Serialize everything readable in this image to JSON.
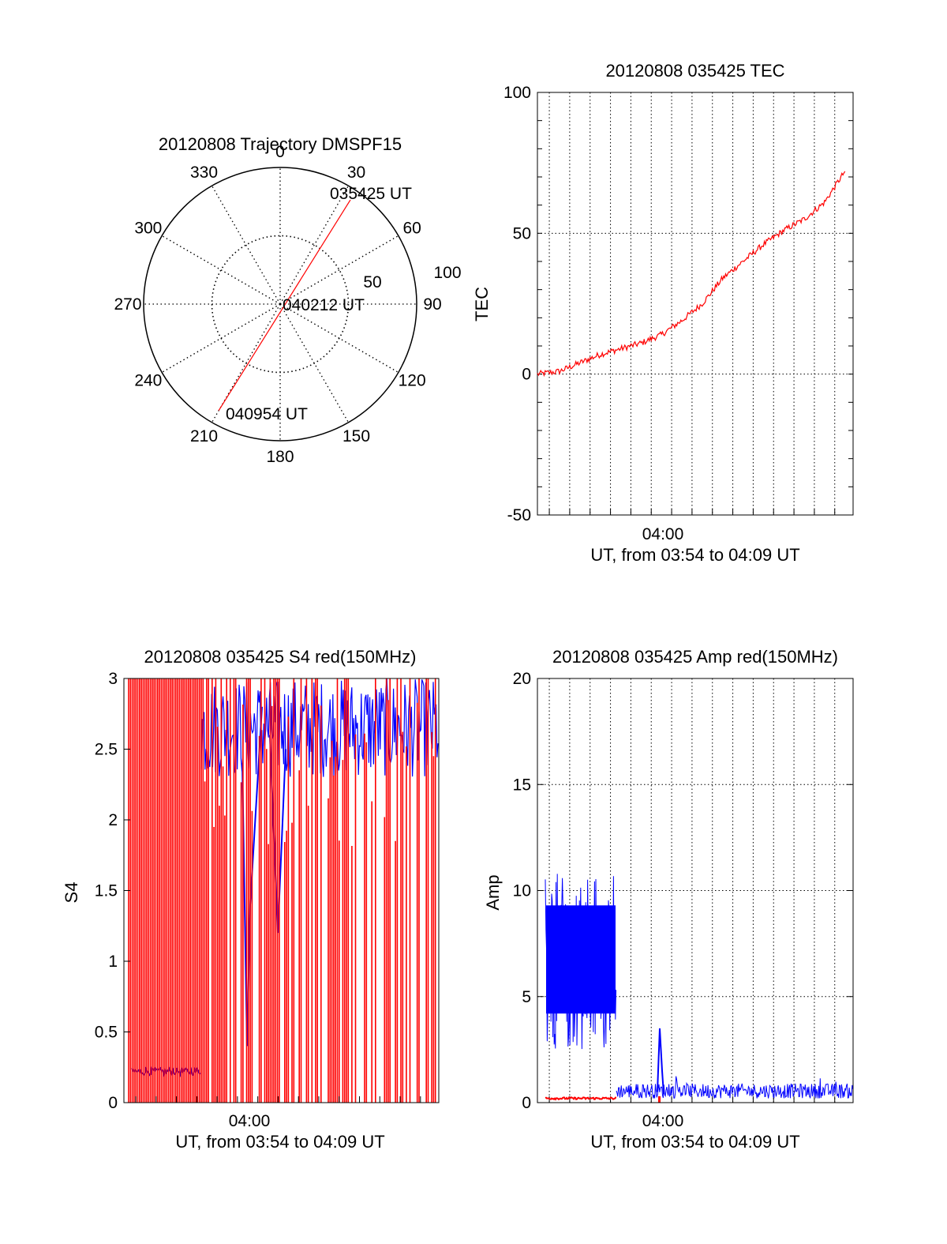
{
  "chart_data": [
    {
      "type": "polar",
      "title": "20120808 Trajectory DMSPF15",
      "angle_labels": [
        "0",
        "30",
        "60",
        "90",
        "120",
        "150",
        "180",
        "210",
        "240",
        "270",
        "300",
        "330"
      ],
      "radial_ticks": [
        "50",
        "100"
      ],
      "rlim": [
        0,
        100
      ],
      "grid": true,
      "series": [
        {
          "color": "#ff0000",
          "points": [
            {
              "azimuth": 34,
              "zenith": 92
            },
            {
              "azimuth": 210,
              "zenith": 90
            }
          ]
        }
      ],
      "annotations": [
        "035425 UT",
        "040212 UT",
        "040954 UT"
      ]
    },
    {
      "type": "line",
      "title": "20120808 035425 TEC",
      "xlabel": "UT, from 03:54 to 04:09 UT",
      "ylabel": "TEC",
      "xlim": [
        "03:54:25",
        "04:09:54"
      ],
      "ylim": [
        -50,
        100
      ],
      "yticks": [
        "100",
        "50",
        "0",
        "-50"
      ],
      "xticks": [
        "04:00"
      ],
      "grid": true,
      "series": [
        {
          "color": "#ff0000",
          "x": [
            "03:54:25",
            "03:55:30",
            "03:56:30",
            "03:57:30",
            "03:58:30",
            "03:59:30",
            "04:00:30",
            "04:01:30",
            "04:02:30",
            "04:03:30",
            "04:04:30",
            "04:05:30",
            "04:06:30",
            "04:07:30",
            "04:08:30",
            "04:09:30"
          ],
          "values": [
            0,
            1,
            4,
            7,
            9,
            11,
            14,
            19,
            25,
            34,
            40,
            46,
            51,
            55,
            61,
            72
          ]
        }
      ]
    },
    {
      "type": "line",
      "title": "20120808 035425 S4 red(150MHz)",
      "xlabel": "UT, from 03:54 to 04:09 UT",
      "ylabel": "S4",
      "xlim": [
        "03:54:25",
        "04:09:54"
      ],
      "ylim": [
        0,
        3
      ],
      "yticks": [
        "3",
        "2.5",
        "2",
        "1.5",
        "1",
        "0.5",
        "0"
      ],
      "xticks": [
        "04:00"
      ],
      "grid": true,
      "series": [
        {
          "color": "#0000ff",
          "description_values": [
            0.22,
            0.22,
            0.23,
            2.8,
            2.7,
            2.9,
            2.8
          ]
        },
        {
          "color": "#ff0000",
          "description_values": [
            3,
            3,
            3,
            3,
            3,
            3,
            3
          ]
        }
      ]
    },
    {
      "type": "line",
      "title": "20120808 035425 Amp red(150MHz)",
      "xlabel": "UT, from 03:54 to 04:09 UT",
      "ylabel": "Amp",
      "xlim": [
        "03:54:25",
        "04:09:54"
      ],
      "ylim": [
        0,
        20
      ],
      "yticks": [
        "20",
        "15",
        "10",
        "5",
        "0"
      ],
      "xticks": [
        "04:00"
      ],
      "grid": true,
      "series": [
        {
          "color": "#0000ff",
          "description_values": [
            7,
            7,
            7,
            0.5,
            0.5,
            0.5
          ]
        },
        {
          "color": "#ff0000",
          "description_values": [
            0.2,
            0.2,
            0.2
          ]
        }
      ]
    }
  ]
}
